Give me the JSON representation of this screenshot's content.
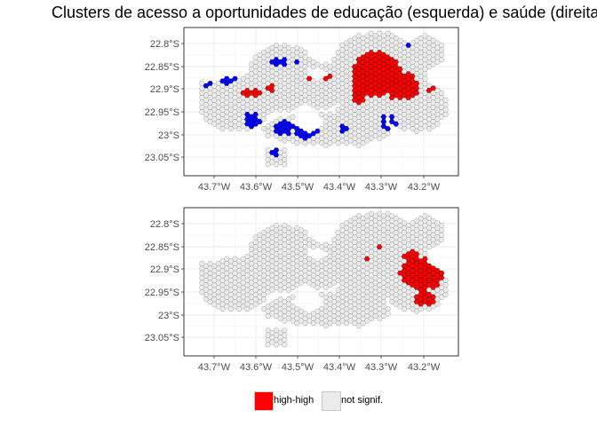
{
  "title": "Clusters de acesso a oportunidades de educação (esquerda) e saúde (direita)",
  "colors": {
    "high_high": "#ff0000",
    "low_low": "#0000ff",
    "not_signif": "#ebebeb",
    "hex_border": "#8a8a8a"
  },
  "axes": {
    "y_ticks": [
      "22.8°S",
      "22.85°S",
      "22.9°S",
      "22.95°S",
      "23°S",
      "23.05°S"
    ],
    "x_ticks": [
      "43.7°W",
      "43.6°W",
      "43.5°W",
      "43.4°W",
      "43.3°W",
      "43.2°W"
    ]
  },
  "legend": [
    {
      "label": "high-high",
      "color": "#ff0000"
    },
    {
      "label": "not signif.",
      "color": "#ebebeb"
    }
  ]
}
